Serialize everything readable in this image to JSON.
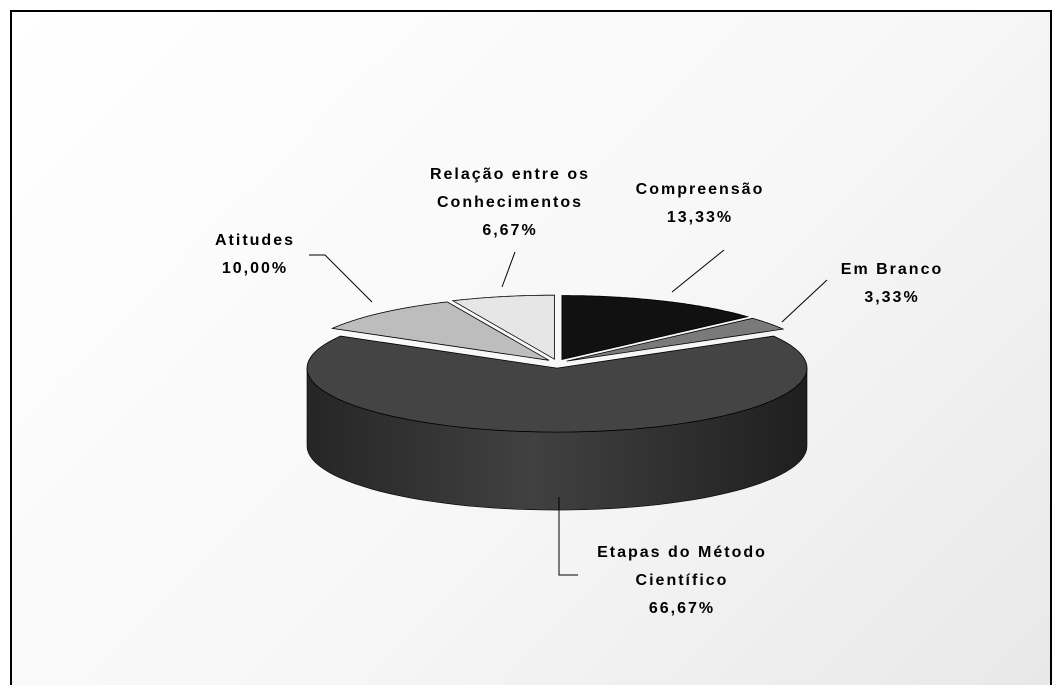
{
  "chart_data": {
    "type": "pie",
    "style": "3d-exploded",
    "colors": {
      "Etapas do Método Científico": "#444444",
      "Atitudes": "#bdbdbd",
      "Relação entre os Conhecimentos": "#e6e6e6",
      "Compreensão": "#111111",
      "Em Branco": "#7a7a7a"
    },
    "slices": [
      {
        "category": "Etapas do Método Científico",
        "value": 66.67,
        "label_lines": [
          "Etapas do Método",
          "Científico"
        ],
        "percent_label": "66,67%"
      },
      {
        "category": "Atitudes",
        "value": 10.0,
        "label_lines": [
          "Atitudes"
        ],
        "percent_label": "10,00%"
      },
      {
        "category": "Relação entre os Conhecimentos",
        "value": 6.67,
        "label_lines": [
          "Relação entre os",
          "Conhecimentos"
        ],
        "percent_label": "6,67%"
      },
      {
        "category": "Compreensão",
        "value": 13.33,
        "label_lines": [
          "Compreensão"
        ],
        "percent_label": "13,33%"
      },
      {
        "category": "Em Branco",
        "value": 3.33,
        "label_lines": [
          "Em Branco"
        ],
        "percent_label": "3,33%"
      }
    ]
  }
}
